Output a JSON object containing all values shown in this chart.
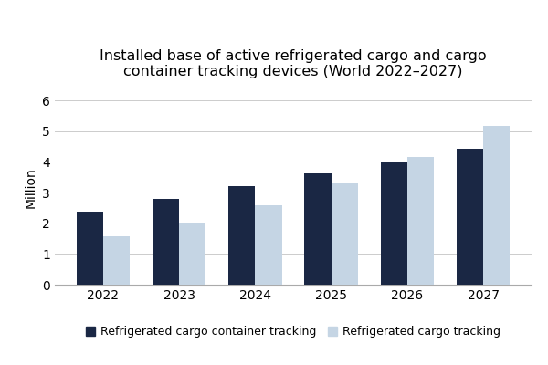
{
  "title": "Installed base of active refrigerated cargo and cargo\ncontainer tracking devices (World 2022–2027)",
  "ylabel": "Million",
  "years": [
    2022,
    2023,
    2024,
    2025,
    2026,
    2027
  ],
  "series1_label": "Refrigerated cargo container tracking",
  "series2_label": "Refrigerated cargo tracking",
  "series1_values": [
    2.37,
    2.78,
    3.22,
    3.62,
    4.02,
    4.42
  ],
  "series2_values": [
    1.57,
    2.02,
    2.6,
    3.3,
    4.15,
    5.18
  ],
  "color_series1": "#1a2744",
  "color_series2": "#c5d5e4",
  "bar_width": 0.35,
  "ylim": [
    0,
    6.3
  ],
  "yticks": [
    0,
    1,
    2,
    3,
    4,
    5,
    6
  ],
  "background_color": "#ffffff",
  "title_fontsize": 11.5,
  "axis_fontsize": 10,
  "legend_fontsize": 9,
  "tick_fontsize": 10
}
